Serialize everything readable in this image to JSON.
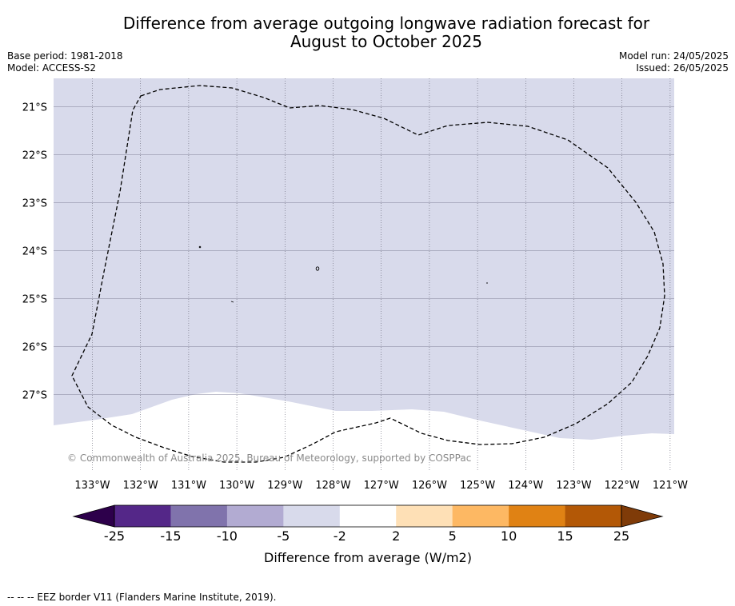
{
  "title_line1": "Difference from average outgoing longwave radiation forecast for",
  "title_line2": "August to October 2025",
  "base_period": "Base period: 1981-2018",
  "model": "Model: ACCESS-S2",
  "model_run": "Model run: 24/05/2025",
  "issued": "Issued: 26/05/2025",
  "copyright": "© Commonwealth of Australia 2025, Bureau of Meteorology, supported by COSPPac",
  "lat_labels": [
    "21°S",
    "22°S",
    "23°S",
    "24°S",
    "25°S",
    "26°S",
    "27°S"
  ],
  "lon_labels": [
    "133°W",
    "132°W",
    "131°W",
    "130°W",
    "129°W",
    "128°W",
    "127°W",
    "126°W",
    "125°W",
    "124°W",
    "123°W",
    "122°W",
    "121°W"
  ],
  "colorbar": {
    "ticks": [
      "-25",
      "-15",
      "-10",
      "-5",
      "-2",
      "2",
      "5",
      "10",
      "15",
      "25"
    ],
    "colors": [
      "#2d004b",
      "#542788",
      "#8073ac",
      "#b2abd2",
      "#d8daeb",
      "#ffffff",
      "#fee0b6",
      "#fdb863",
      "#e08214",
      "#b35806",
      "#7f3b08"
    ],
    "label": "Difference from average (W/m2)"
  },
  "map_fill_color": "#d8daeb",
  "footer": "--  --  -- EEZ border V11 (Flanders Marine Institute, 2019)."
}
